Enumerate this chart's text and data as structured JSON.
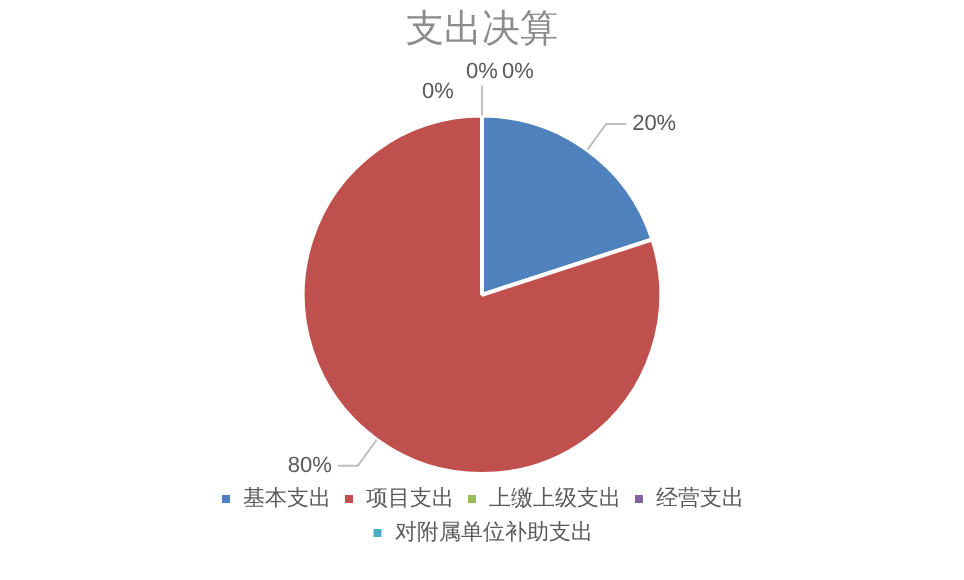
{
  "chart_data": {
    "type": "pie",
    "title": "支出决算",
    "categories": [
      "基本支出",
      "项目支出",
      "上缴上级支出",
      "经营支出",
      "对附属单位补助支出"
    ],
    "values": [
      20,
      80,
      0,
      0,
      0
    ],
    "colors": [
      "#4f81bd",
      "#c0504d",
      "#9bbb59",
      "#8064a2",
      "#4bacc6"
    ],
    "value_labels": [
      "20%",
      "80%",
      "0%",
      "0%",
      "0%"
    ],
    "legend": "bottom"
  }
}
